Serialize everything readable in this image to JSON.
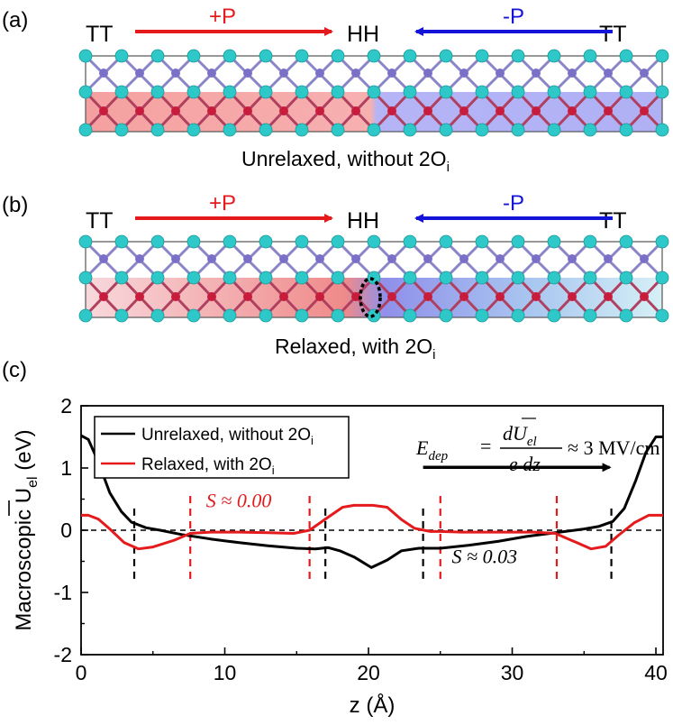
{
  "panels": {
    "a": {
      "tag": "(a)",
      "left_end": "TT",
      "center": "HH",
      "right_end": "TT",
      "arrow_left_label": "+P",
      "arrow_right_label": "-P",
      "caption_main": "Unrelaxed, without 2O",
      "caption_sub": "i"
    },
    "b": {
      "tag": "(b)",
      "left_end": "TT",
      "center": "HH",
      "right_end": "TT",
      "arrow_left_label": "+P",
      "arrow_right_label": "-P",
      "caption_main": "Relaxed, with 2O",
      "caption_sub": "i"
    },
    "c": {
      "tag": "(c)"
    }
  },
  "colors": {
    "red": "#e41a1c",
    "blue": "#1414d8",
    "black": "#000000",
    "ball_cyan": "#2ec8c8",
    "ball_purple": "#7a70c8",
    "ball_red": "#c81c3c"
  },
  "chart_data": {
    "type": "line",
    "xlabel": "z (Å)",
    "ylabel_main": "Macroscopic U",
    "ylabel_sub": "el",
    "ylabel_unit": " (eV)",
    "xlim": [
      0,
      40.5
    ],
    "ylim": [
      -2,
      2
    ],
    "xticks": [
      0,
      10,
      20,
      30,
      40
    ],
    "yticks": [
      -2,
      -1,
      0,
      1,
      2
    ],
    "xtick_labels": [
      "0",
      "10",
      "20",
      "30",
      "40"
    ],
    "ytick_labels": [
      "-2",
      "-1",
      "0",
      "1",
      "2"
    ],
    "legend": [
      {
        "main": "Unrelaxed, without 2O",
        "sub": "i",
        "color": "#000000"
      },
      {
        "main": "Relaxed, with 2O",
        "sub": "i",
        "color": "#e41a1c"
      }
    ],
    "series": [
      {
        "color": "#000000",
        "x": [
          0,
          0.5,
          1.2,
          2,
          2.8,
          3.5,
          4.5,
          5.5,
          7,
          9,
          11,
          13,
          15,
          16.3,
          17.2,
          18,
          19,
          20.2,
          21.3,
          22.3,
          23.5,
          25,
          27,
          29,
          31,
          33,
          35,
          36,
          37,
          37.8,
          38.6,
          39.3,
          40,
          40.5
        ],
        "y": [
          1.52,
          1.46,
          1.1,
          0.6,
          0.3,
          0.13,
          0.04,
          0.0,
          -0.07,
          -0.14,
          -0.2,
          -0.25,
          -0.29,
          -0.3,
          -0.28,
          -0.33,
          -0.43,
          -0.6,
          -0.48,
          -0.33,
          -0.29,
          -0.29,
          -0.24,
          -0.18,
          -0.1,
          -0.04,
          0.02,
          0.06,
          0.14,
          0.35,
          0.8,
          1.25,
          1.5,
          1.5
        ]
      },
      {
        "color": "#e41a1c",
        "x": [
          0,
          0.5,
          1.2,
          2,
          3,
          4,
          5,
          6.5,
          7.6,
          9,
          11,
          13,
          14.8,
          15.9,
          17,
          18.2,
          19,
          20.3,
          21.3,
          22.3,
          23.2,
          24.3,
          25,
          26.5,
          29,
          31.5,
          33,
          34.5,
          35.5,
          36.5,
          37.4,
          38.5,
          39.5,
          40.5
        ],
        "y": [
          0.24,
          0.24,
          0.18,
          0.02,
          -0.2,
          -0.3,
          -0.27,
          -0.16,
          -0.05,
          -0.03,
          -0.03,
          -0.04,
          -0.05,
          0.0,
          0.18,
          0.37,
          0.4,
          0.4,
          0.37,
          0.17,
          0.03,
          -0.02,
          -0.02,
          -0.03,
          -0.03,
          -0.03,
          -0.05,
          -0.2,
          -0.3,
          -0.26,
          -0.08,
          0.12,
          0.24,
          0.24
        ]
      }
    ],
    "dashed_vlines_black": [
      3.7,
      17.0,
      23.8,
      36.9
    ],
    "dashed_vlines_red": [
      7.6,
      15.9,
      25.0,
      33.1
    ],
    "hline_zero": true,
    "annotations": {
      "s_left": "S ≈ 0.00",
      "s_right": "S ≈ 0.03",
      "edep_lhs": "E",
      "edep_lhs_sub": "dep",
      "edep_num": "dU",
      "edep_num_sub": "el",
      "edep_den": "e dz",
      "edep_rhs": "≈ 3 MV/cm",
      "arrow_from_x": 23.8,
      "arrow_to_x": 36.9,
      "arrow_y": 1.01
    }
  }
}
